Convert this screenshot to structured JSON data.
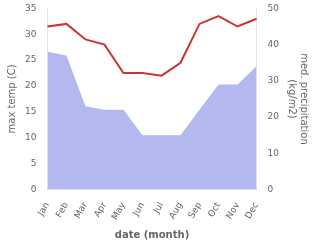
{
  "chart_data": {
    "type": "line",
    "categories": [
      "Jan",
      "Feb",
      "Mar",
      "Apr",
      "May",
      "Jun",
      "Jul",
      "Aug",
      "Sep",
      "Oct",
      "Nov",
      "Dec"
    ],
    "series": [
      {
        "type": "area",
        "axis": "y2",
        "color": "#b3b9ee",
        "values": [
          38.0,
          37.0,
          23.0,
          22.0,
          22.0,
          15.0,
          15.0,
          15.0,
          22.0,
          29.0,
          29.0,
          34.0
        ]
      },
      {
        "type": "line",
        "color": "#cc3333",
        "values": [
          31.5,
          32.0,
          29.0,
          28.0,
          22.5,
          22.5,
          22.0,
          24.5,
          32.0,
          33.5,
          31.5,
          33.0
        ]
      }
    ],
    "xlabel": "date (month)",
    "ylabel": "max temp (C)",
    "y2label": "med. precipitation\n(kg/m2)",
    "ylim": [
      0,
      35
    ],
    "yticks": [
      0,
      5,
      10,
      15,
      20,
      25,
      30,
      35
    ],
    "y2lim": [
      0,
      50
    ],
    "y2ticks": [
      0,
      10,
      20,
      30,
      40,
      50
    ],
    "grid": false
  }
}
